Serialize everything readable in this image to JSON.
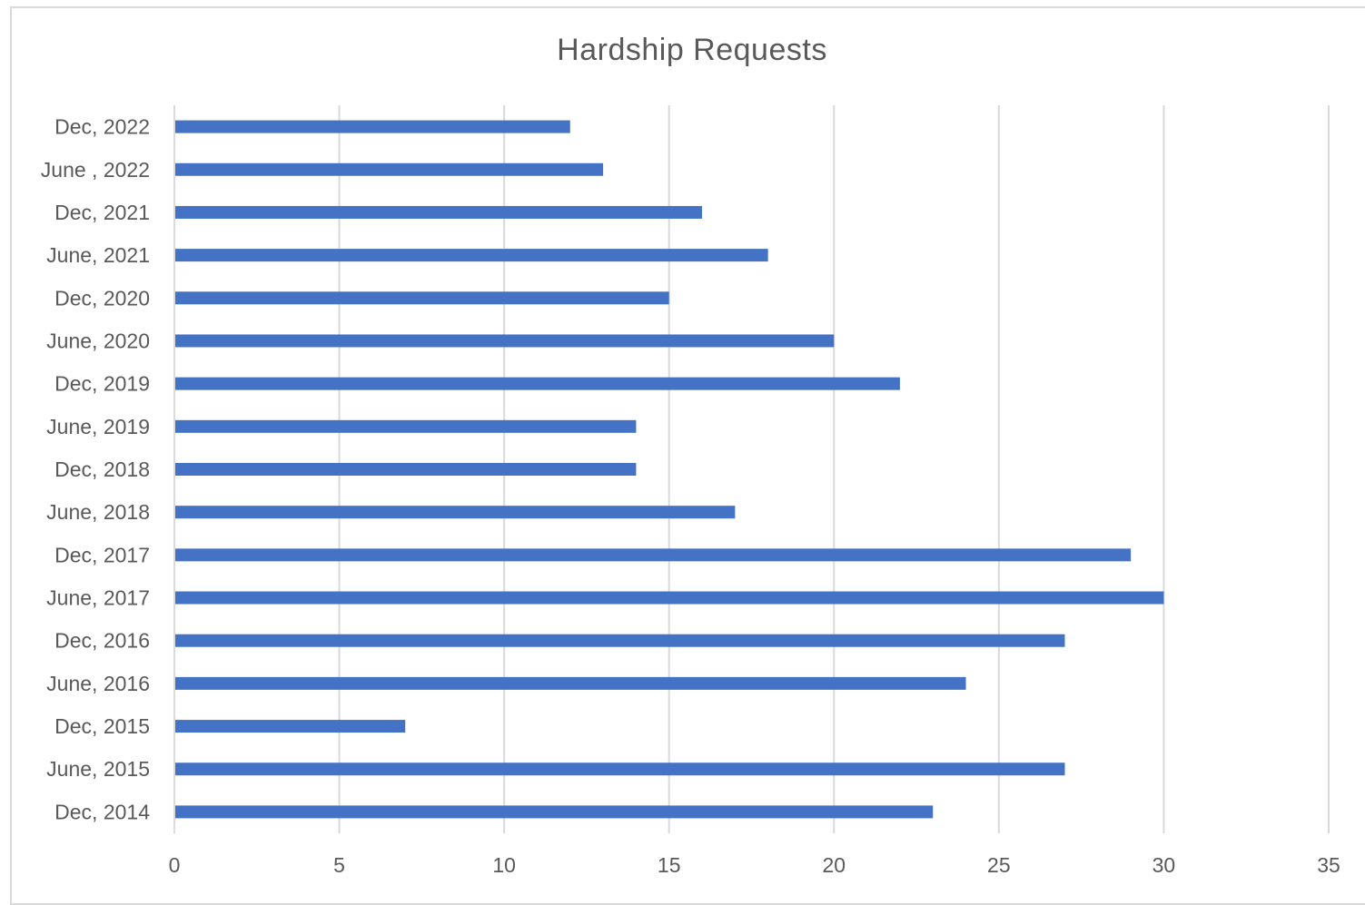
{
  "chart_data": {
    "type": "bar",
    "orientation": "horizontal",
    "title": "Hardship Requests",
    "xlabel": "",
    "ylabel": "",
    "categories": [
      "Dec, 2022",
      "June , 2022",
      "Dec, 2021",
      "June, 2021",
      "Dec, 2020",
      "June, 2020",
      "Dec, 2019",
      "June, 2019",
      "Dec, 2018",
      "June, 2018",
      "Dec, 2017",
      "June, 2017",
      "Dec, 2016",
      "June, 2016",
      "Dec, 2015",
      "June, 2015",
      "Dec, 2014"
    ],
    "values": [
      12,
      13,
      16,
      18,
      15,
      20,
      22,
      14,
      14,
      17,
      29,
      30,
      27,
      24,
      7,
      27,
      23
    ],
    "xlim": [
      0,
      35
    ],
    "xticks": [
      "0",
      "5",
      "10",
      "15",
      "20",
      "25",
      "30",
      "35"
    ],
    "grid": true,
    "legend": "none",
    "bar_color": "#4472c4",
    "grid_color": "#d9d9d9",
    "text_color": "#595959"
  }
}
